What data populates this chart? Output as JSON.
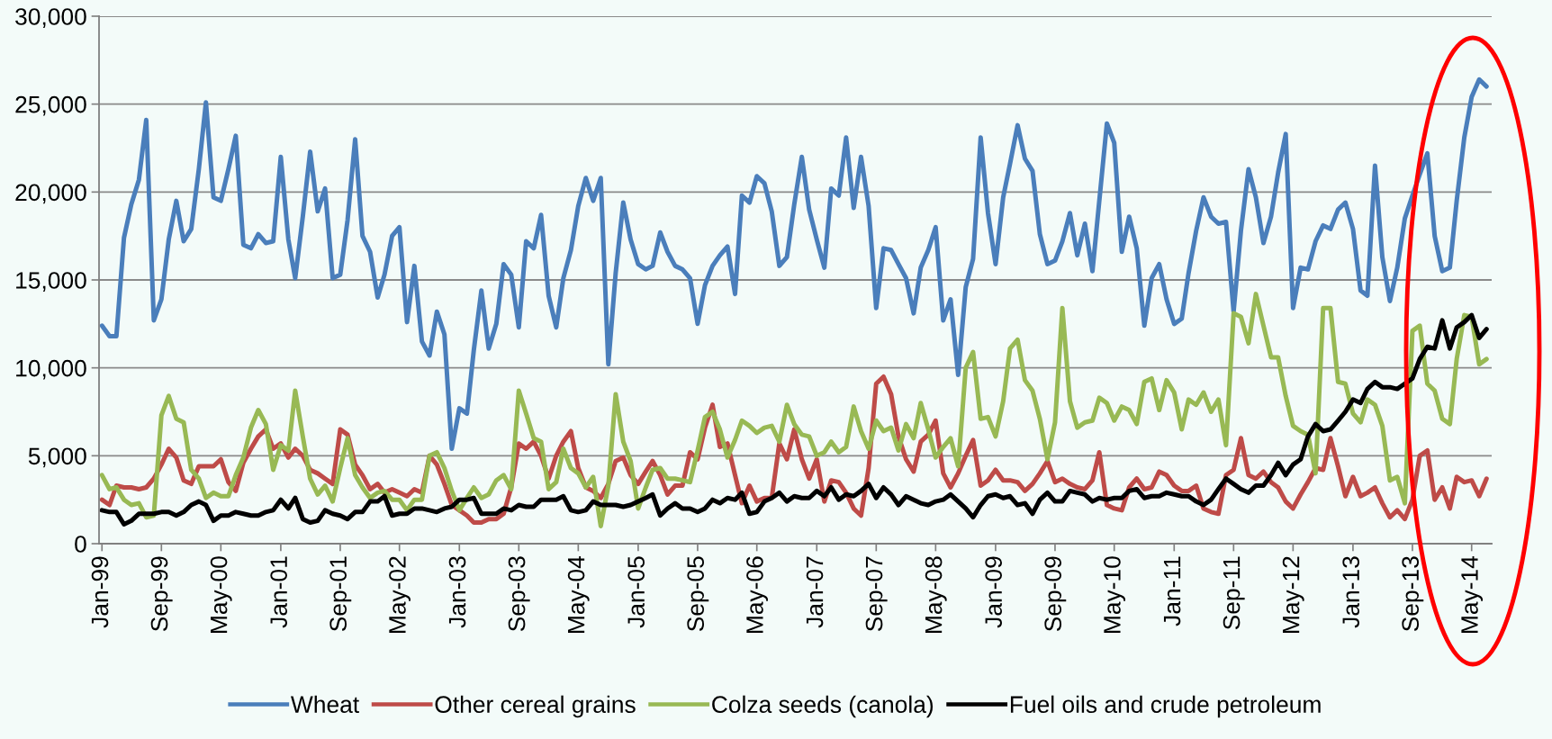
{
  "chart_data": {
    "type": "line",
    "x": [
      "1999-01",
      "1999-02",
      "1999-03",
      "1999-04",
      "1999-05",
      "1999-06",
      "1999-07",
      "1999-08",
      "1999-09",
      "1999-10",
      "1999-11",
      "1999-12",
      "2000-01",
      "2000-02",
      "2000-03",
      "2000-04",
      "2000-05",
      "2000-06",
      "2000-07",
      "2000-08",
      "2000-09",
      "2000-10",
      "2000-11",
      "2000-12",
      "2001-01",
      "2001-02",
      "2001-03",
      "2001-04",
      "2001-05",
      "2001-06",
      "2001-07",
      "2001-08",
      "2001-09",
      "2001-10",
      "2001-11",
      "2001-12",
      "2002-01",
      "2002-02",
      "2002-03",
      "2002-04",
      "2002-05",
      "2002-06",
      "2002-07",
      "2002-08",
      "2002-09",
      "2002-10",
      "2002-11",
      "2002-12",
      "2003-01",
      "2003-02",
      "2003-03",
      "2003-04",
      "2003-05",
      "2003-06",
      "2003-07",
      "2003-08",
      "2003-09",
      "2003-10",
      "2003-11",
      "2003-12",
      "2004-01",
      "2004-02",
      "2004-03",
      "2004-04",
      "2004-05",
      "2004-06",
      "2004-07",
      "2004-08",
      "2004-09",
      "2004-10",
      "2004-11",
      "2004-12",
      "2005-01",
      "2005-02",
      "2005-03",
      "2005-04",
      "2005-05",
      "2005-06",
      "2005-07",
      "2005-08",
      "2005-09",
      "2005-10",
      "2005-11",
      "2005-12",
      "2006-01",
      "2006-02",
      "2006-03",
      "2006-04",
      "2006-05",
      "2006-06",
      "2006-07",
      "2006-08",
      "2006-09",
      "2006-10",
      "2006-11",
      "2006-12",
      "2007-01",
      "2007-02",
      "2007-03",
      "2007-04",
      "2007-05",
      "2007-06",
      "2007-07",
      "2007-08",
      "2007-09",
      "2007-10",
      "2007-11",
      "2007-12",
      "2008-01",
      "2008-02",
      "2008-03",
      "2008-04",
      "2008-05",
      "2008-06",
      "2008-07",
      "2008-08",
      "2008-09",
      "2008-10",
      "2008-11",
      "2008-12",
      "2009-01",
      "2009-02",
      "2009-03",
      "2009-04",
      "2009-05",
      "2009-06",
      "2009-07",
      "2009-08",
      "2009-09",
      "2009-10",
      "2009-11",
      "2009-12",
      "2010-01",
      "2010-02",
      "2010-03",
      "2010-04",
      "2010-05",
      "2010-06",
      "2010-07",
      "2010-08",
      "2010-09",
      "2010-10",
      "2010-11",
      "2010-12",
      "2011-01",
      "2011-02",
      "2011-03",
      "2011-04",
      "2011-05",
      "2011-06",
      "2011-07",
      "2011-08",
      "2011-09",
      "2011-10",
      "2011-11",
      "2011-12",
      "2012-01",
      "2012-02",
      "2012-03",
      "2012-04",
      "2012-05",
      "2012-06",
      "2012-07",
      "2012-08",
      "2012-09",
      "2012-10",
      "2012-11",
      "2012-12",
      "2013-01",
      "2013-02",
      "2013-03",
      "2013-04",
      "2013-05",
      "2013-06",
      "2013-07",
      "2013-08",
      "2013-09",
      "2013-10",
      "2013-11",
      "2013-12",
      "2014-01",
      "2014-02",
      "2014-03",
      "2014-04",
      "2014-05",
      "2014-06",
      "2014-07"
    ],
    "series": [
      {
        "name": "Wheat",
        "color": "#4a7ebb",
        "values": [
          12400,
          11800,
          11800,
          17400,
          19300,
          20700,
          24100,
          12700,
          13900,
          17300,
          19500,
          17200,
          17900,
          21300,
          25100,
          19700,
          19500,
          21300,
          23200,
          17000,
          16800,
          17600,
          17100,
          17200,
          22000,
          17300,
          15100,
          18600,
          22300,
          18900,
          20200,
          15100,
          15300,
          18400,
          23000,
          17500,
          16600,
          14000,
          15300,
          17500,
          18000,
          12600,
          15800,
          11500,
          10700,
          13200,
          11900,
          5400,
          7700,
          7400,
          11000,
          14400,
          11100,
          12500,
          15900,
          15300,
          12300,
          17200,
          16800,
          18700,
          14100,
          12300,
          15100,
          16700,
          19200,
          20800,
          19500,
          20800,
          10200,
          15400,
          19400,
          17300,
          15900,
          15600,
          15800,
          17700,
          16600,
          15800,
          15600,
          15100,
          12500,
          14700,
          15800,
          16400,
          16900,
          14200,
          19800,
          19400,
          20900,
          20500,
          18900,
          15800,
          16300,
          19300,
          22000,
          19000,
          17300,
          15700,
          20200,
          19800,
          23100,
          19100,
          22000,
          19200,
          13400,
          16800,
          16700,
          15900,
          15100,
          13100,
          15700,
          16700,
          18000,
          12700,
          13900,
          9600,
          14600,
          16200,
          23100,
          18800,
          15900,
          19700,
          21600,
          23800,
          21900,
          21200,
          17600,
          15900,
          16100,
          17200,
          18800,
          16400,
          18200,
          15500,
          19500,
          23900,
          22800,
          16600,
          18600,
          16800,
          12400,
          15100,
          15900,
          13900,
          12500,
          12800,
          15400,
          17800,
          19700,
          18600,
          18200,
          18300,
          13200,
          17800,
          21300,
          19700,
          17100,
          18600,
          21100,
          23300,
          13400,
          15700,
          15600,
          17200,
          18100,
          17900,
          19000,
          19400,
          17900,
          14400,
          14100,
          21500,
          16300,
          13800,
          15700,
          18500,
          19800,
          21000,
          22200,
          17500,
          15500,
          15700,
          19500,
          23100,
          25400,
          26400,
          26000
        ]
      },
      {
        "name": "Other cereal grains",
        "color": "#be4b48",
        "values": [
          2500,
          2200,
          3300,
          3200,
          3200,
          3100,
          3200,
          3700,
          4500,
          5400,
          4900,
          3600,
          3400,
          4400,
          4400,
          4400,
          4800,
          3500,
          3000,
          4600,
          5400,
          6100,
          6500,
          5400,
          5700,
          4900,
          5400,
          5000,
          4200,
          4000,
          3700,
          3400,
          6500,
          6200,
          4500,
          3900,
          3100,
          3400,
          2900,
          3100,
          2900,
          2700,
          3100,
          2900,
          5000,
          4500,
          3400,
          2200,
          1900,
          1600,
          1200,
          1200,
          1400,
          1400,
          1700,
          3200,
          5700,
          5400,
          5800,
          5000,
          3700,
          5000,
          5800,
          6400,
          4300,
          3200,
          3000,
          2600,
          3400,
          4700,
          4900,
          3900,
          3400,
          4100,
          4700,
          3900,
          2800,
          3300,
          3300,
          5200,
          4800,
          6600,
          7900,
          5500,
          5700,
          3900,
          2300,
          3300,
          2400,
          2600,
          2600,
          5700,
          4800,
          6500,
          4800,
          3700,
          4800,
          2400,
          3600,
          3500,
          2900,
          2000,
          1600,
          4300,
          9100,
          9500,
          8500,
          6100,
          4800,
          4100,
          5800,
          6200,
          7000,
          4000,
          3200,
          4000,
          5000,
          5900,
          3300,
          3600,
          4200,
          3600,
          3600,
          3500,
          3000,
          3400,
          4000,
          4700,
          3500,
          3700,
          3400,
          3200,
          3100,
          3600,
          5200,
          2200,
          2000,
          1900,
          3200,
          3700,
          3100,
          3200,
          4100,
          3900,
          3300,
          3000,
          3000,
          3300,
          2000,
          1800,
          1700,
          3900,
          4200,
          6000,
          3900,
          3700,
          4100,
          3500,
          3200,
          2400,
          2000,
          2800,
          3500,
          4300,
          4200,
          6000,
          4400,
          2700,
          3800,
          2700,
          2900,
          3200,
          2300,
          1500,
          1900,
          1400,
          2500,
          5000,
          5300,
          2500,
          3200,
          2000,
          3800,
          3500,
          3600,
          2700,
          3700
        ]
      },
      {
        "name": "Colza seeds (canola)",
        "color": "#98b954",
        "values": [
          3900,
          3100,
          3200,
          2500,
          2200,
          2300,
          1500,
          1600,
          7300,
          8400,
          7100,
          6900,
          4200,
          3700,
          2600,
          2900,
          2700,
          2700,
          3900,
          4900,
          6600,
          7600,
          6800,
          4200,
          5600,
          5300,
          8700,
          6100,
          3700,
          2800,
          3300,
          2400,
          4300,
          6000,
          3900,
          3200,
          2600,
          2900,
          3000,
          2500,
          2500,
          1900,
          2500,
          2500,
          5000,
          5200,
          4300,
          3000,
          1900,
          2600,
          3200,
          2600,
          2800,
          3600,
          3900,
          3100,
          8700,
          7400,
          6000,
          5800,
          3100,
          3500,
          5400,
          4300,
          4000,
          3200,
          3800,
          1000,
          3300,
          8500,
          5800,
          4700,
          2000,
          3200,
          4200,
          4300,
          3700,
          3700,
          3600,
          3500,
          5300,
          7200,
          7500,
          6500,
          4900,
          5900,
          7000,
          6700,
          6300,
          6600,
          6700,
          5800,
          7900,
          6800,
          6200,
          6100,
          5000,
          5200,
          5800,
          5200,
          5500,
          7800,
          6400,
          5400,
          7000,
          6400,
          6600,
          5300,
          6800,
          6000,
          8000,
          6500,
          4900,
          5500,
          6000,
          4400,
          10000,
          10900,
          7100,
          7200,
          6100,
          8100,
          11100,
          11600,
          9300,
          8700,
          7100,
          4800,
          6900,
          13400,
          8100,
          6600,
          6900,
          7000,
          8300,
          8000,
          7000,
          7800,
          7600,
          6800,
          9200,
          9400,
          7600,
          9300,
          8600,
          6500,
          8200,
          7900,
          8600,
          7500,
          8200,
          5600,
          13100,
          12900,
          11400,
          14200,
          12400,
          10600,
          10600,
          8400,
          6700,
          6400,
          6200,
          4000,
          13400,
          13400,
          9200,
          9100,
          7400,
          6900,
          8200,
          7900,
          6700,
          3600,
          3800,
          2300,
          12100,
          12400,
          9100,
          8700,
          7100,
          6800,
          10500,
          13000,
          12900,
          10200,
          10500
        ]
      },
      {
        "name": "Fuel oils and crude petroleum",
        "color": "#000000",
        "values": [
          1900,
          1800,
          1800,
          1100,
          1300,
          1700,
          1700,
          1700,
          1800,
          1800,
          1600,
          1800,
          2200,
          2400,
          2200,
          1300,
          1600,
          1600,
          1800,
          1700,
          1600,
          1600,
          1800,
          1900,
          2500,
          2000,
          2600,
          1400,
          1200,
          1300,
          1900,
          1700,
          1600,
          1400,
          1800,
          1800,
          2400,
          2400,
          2700,
          1600,
          1700,
          1700,
          2000,
          2000,
          1900,
          1800,
          2000,
          2100,
          2500,
          2500,
          2600,
          1700,
          1700,
          1700,
          2000,
          1900,
          2200,
          2100,
          2100,
          2500,
          2500,
          2500,
          2700,
          1900,
          1800,
          1900,
          2400,
          2200,
          2200,
          2200,
          2100,
          2200,
          2400,
          2600,
          2800,
          1600,
          2000,
          2300,
          2000,
          2000,
          1800,
          2000,
          2500,
          2300,
          2600,
          2500,
          2900,
          1700,
          1800,
          2400,
          2600,
          2900,
          2400,
          2700,
          2600,
          2600,
          3000,
          2700,
          3200,
          2500,
          2800,
          2700,
          3000,
          3400,
          2600,
          3200,
          2800,
          2200,
          2700,
          2500,
          2300,
          2200,
          2400,
          2500,
          2800,
          2400,
          2000,
          1500,
          2200,
          2700,
          2800,
          2600,
          2700,
          2200,
          2300,
          1700,
          2500,
          2900,
          2400,
          2400,
          3000,
          2900,
          2800,
          2400,
          2600,
          2500,
          2600,
          2600,
          3000,
          3100,
          2600,
          2700,
          2700,
          2900,
          2800,
          2700,
          2700,
          2400,
          2200,
          2500,
          3100,
          3700,
          3400,
          3100,
          2900,
          3300,
          3300,
          3900,
          4600,
          3900,
          4500,
          4800,
          6100,
          6800,
          6400,
          6500,
          7000,
          7500,
          8200,
          8000,
          8800,
          9200,
          8900,
          8900,
          8800,
          9100,
          9400,
          10500,
          11200,
          11100,
          12700,
          11100,
          12300,
          12600,
          13000,
          11700,
          12200
        ]
      }
    ],
    "xlim": [
      "1998-12-20",
      "2014-07-22"
    ],
    "xticks": [
      {
        "value": "1999-01",
        "label": "Jan-99"
      },
      {
        "value": "1999-09",
        "label": "Sep-99"
      },
      {
        "value": "2000-05",
        "label": "May-00"
      },
      {
        "value": "2001-01",
        "label": "Jan-01"
      },
      {
        "value": "2001-09",
        "label": "Sep-01"
      },
      {
        "value": "2002-05",
        "label": "May-02"
      },
      {
        "value": "2003-01",
        "label": "Jan-03"
      },
      {
        "value": "2003-09",
        "label": "Sep-03"
      },
      {
        "value": "2004-05",
        "label": "May-04"
      },
      {
        "value": "2005-01",
        "label": "Jan-05"
      },
      {
        "value": "2005-09",
        "label": "Sep-05"
      },
      {
        "value": "2006-05",
        "label": "May-06"
      },
      {
        "value": "2007-01",
        "label": "Jan-07"
      },
      {
        "value": "2007-09",
        "label": "Sep-07"
      },
      {
        "value": "2008-05",
        "label": "May-08"
      },
      {
        "value": "2009-01",
        "label": "Jan-09"
      },
      {
        "value": "2009-09",
        "label": "Sep-09"
      },
      {
        "value": "2010-05",
        "label": "May-10"
      },
      {
        "value": "2011-01",
        "label": "Jan-11"
      },
      {
        "value": "2011-09",
        "label": "Sep-11"
      },
      {
        "value": "2012-05",
        "label": "May-12"
      },
      {
        "value": "2013-01",
        "label": "Jan-13"
      },
      {
        "value": "2013-09",
        "label": "Sep-13"
      },
      {
        "value": "2014-05",
        "label": "May-14"
      }
    ],
    "ylim": [
      0,
      30000
    ],
    "yticks": [
      0,
      {
        "value": 5000,
        "label": "5,000"
      },
      {
        "value": 10000,
        "label": "10,000"
      },
      {
        "value": 15000,
        "label": "15,000"
      },
      {
        "value": 20000,
        "label": "20,000"
      },
      {
        "value": 25000,
        "label": "25,000"
      },
      {
        "value": 30000,
        "label": "30,000"
      }
    ],
    "grid": "y",
    "legend": "bottom",
    "marker": "none",
    "line_style": "solid"
  }
}
